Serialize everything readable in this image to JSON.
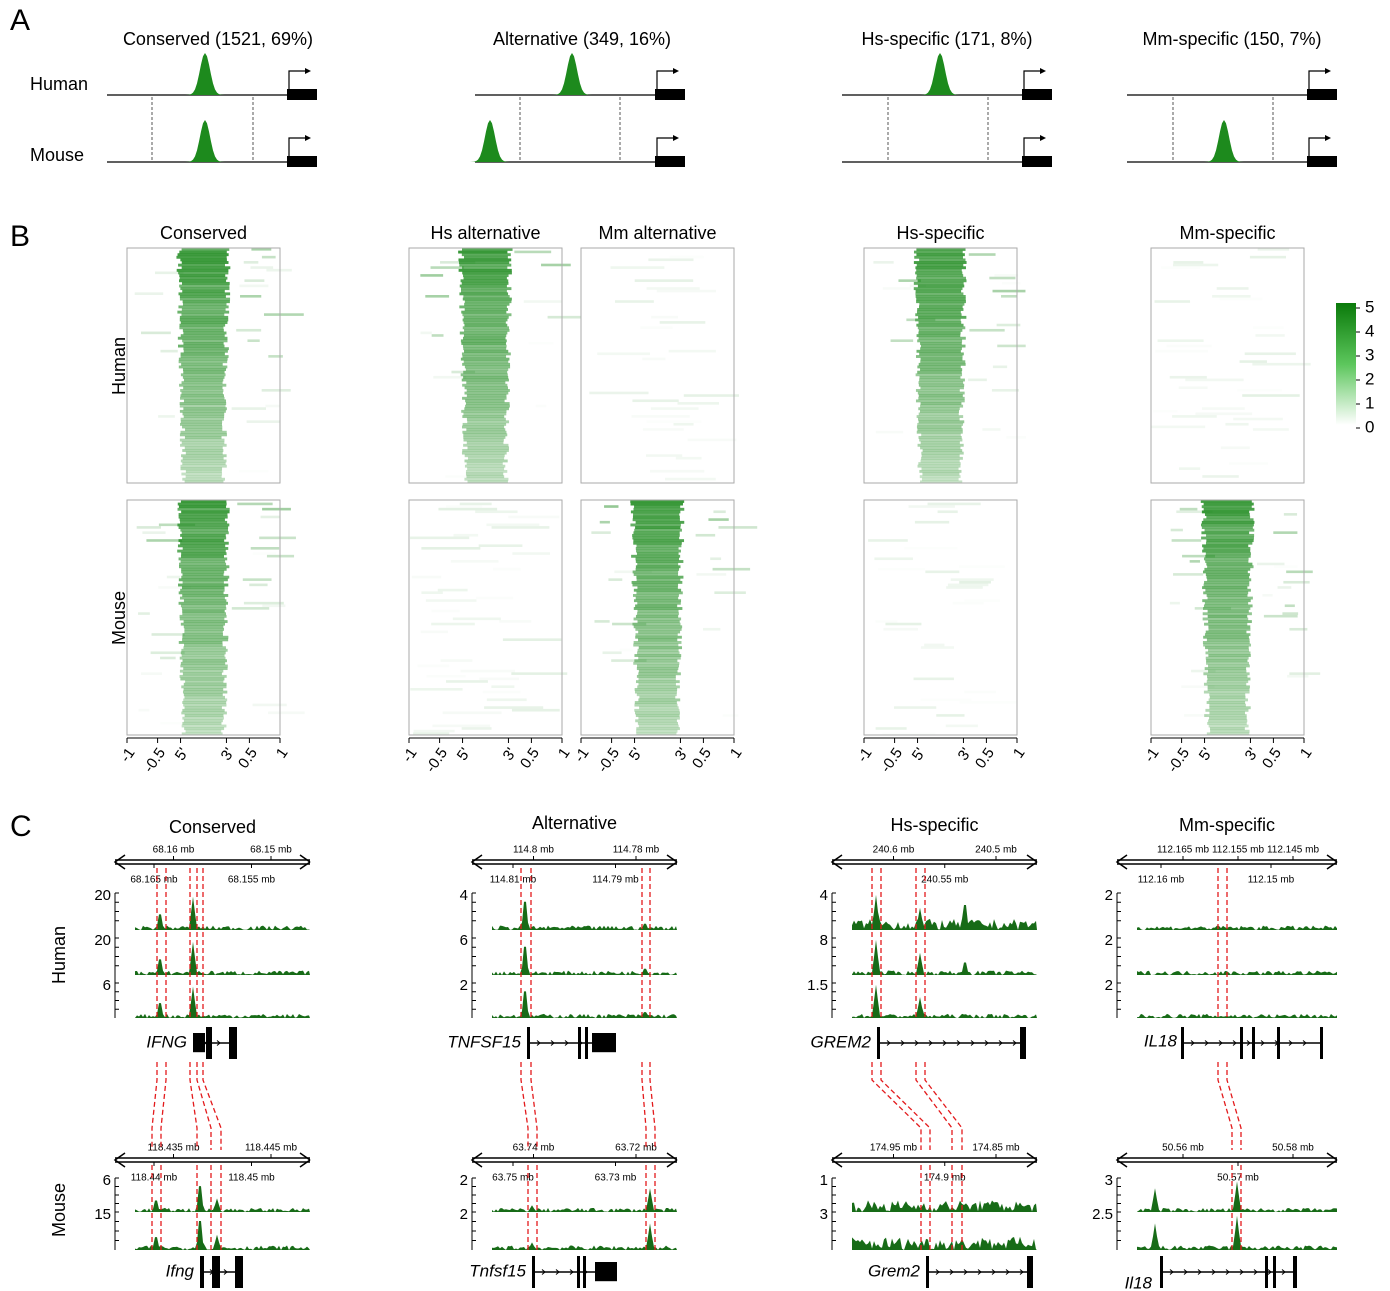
{
  "panel_labels": [
    "A",
    "B",
    "C"
  ],
  "panel_a": {
    "row_labels": [
      "Human",
      "Mouse"
    ],
    "groups": [
      "Conserved (1521, 69%)",
      "Alternative (349, 16%)",
      "Hs-specific (171, 8%)",
      "Mm-specific (150, 7%)"
    ]
  },
  "panel_b": {
    "row_labels": [
      "Human",
      "Mouse"
    ],
    "columns": [
      "Conserved",
      "Hs alternative",
      "Mm alternative",
      "Hs-specific",
      "Mm-specific"
    ],
    "x_ticks": [
      "-1",
      "-0.5",
      "5'",
      "3'",
      "0.5",
      "1"
    ],
    "colorbar_ticks": [
      "5",
      "4",
      "3",
      "2",
      "1",
      "0"
    ]
  },
  "panel_c": {
    "row_labels": [
      "Human",
      "Mouse"
    ],
    "groups": [
      {
        "title": "Conserved",
        "human": {
          "scale_top": [
            "68.16 mb",
            "68.15 mb"
          ],
          "scale_bottom": [
            "68.165 mb",
            "68.155 mb"
          ],
          "tracks": [
            "20",
            "20",
            "6"
          ],
          "gene": "IFNG"
        },
        "mouse": {
          "scale_top": [
            "118.435 mb",
            "118.445 mb"
          ],
          "scale_bottom": [
            "118.44 mb",
            "118.45 mb"
          ],
          "tracks": [
            "6",
            "15"
          ],
          "gene": "Ifng"
        }
      },
      {
        "title": "Alternative",
        "human": {
          "scale_top": [
            "114.8 mb",
            "114.78 mb"
          ],
          "scale_bottom": [
            "114.81 mb",
            "114.79 mb"
          ],
          "tracks": [
            "4",
            "6",
            "2"
          ],
          "gene": "TNFSF15"
        },
        "mouse": {
          "scale_top": [
            "63.74 mb",
            "63.72 mb"
          ],
          "scale_bottom": [
            "63.75 mb",
            "63.73 mb"
          ],
          "tracks": [
            "2",
            "2"
          ],
          "gene": "Tnfsf15"
        }
      },
      {
        "title": "Hs-specific",
        "human": {
          "scale_top": [
            "240.6 mb",
            "240.5 mb"
          ],
          "scale_bottom": [
            "240.55 mb"
          ],
          "tracks": [
            "4",
            "8",
            "1.5"
          ],
          "gene": "GREM2"
        },
        "mouse": {
          "scale_top": [
            "174.95 mb",
            "174.85 mb"
          ],
          "scale_bottom": [
            "174.9 mb"
          ],
          "tracks": [
            "1",
            "3"
          ],
          "gene": "Grem2"
        }
      },
      {
        "title": "Mm-specific",
        "human": {
          "scale_top": [
            "112.165 mb",
            "112.155 mb",
            "112.145 mb"
          ],
          "scale_bottom": [
            "112.16 mb",
            "112.15 mb"
          ],
          "tracks": [
            "2",
            "2",
            "2"
          ],
          "gene": "IL18"
        },
        "mouse": {
          "scale_top": [
            "50.56 mb",
            "50.58 mb"
          ],
          "scale_bottom": [
            "50.57 mb"
          ],
          "tracks": [
            "3",
            "2.5"
          ],
          "gene": "Il18"
        }
      }
    ]
  }
}
